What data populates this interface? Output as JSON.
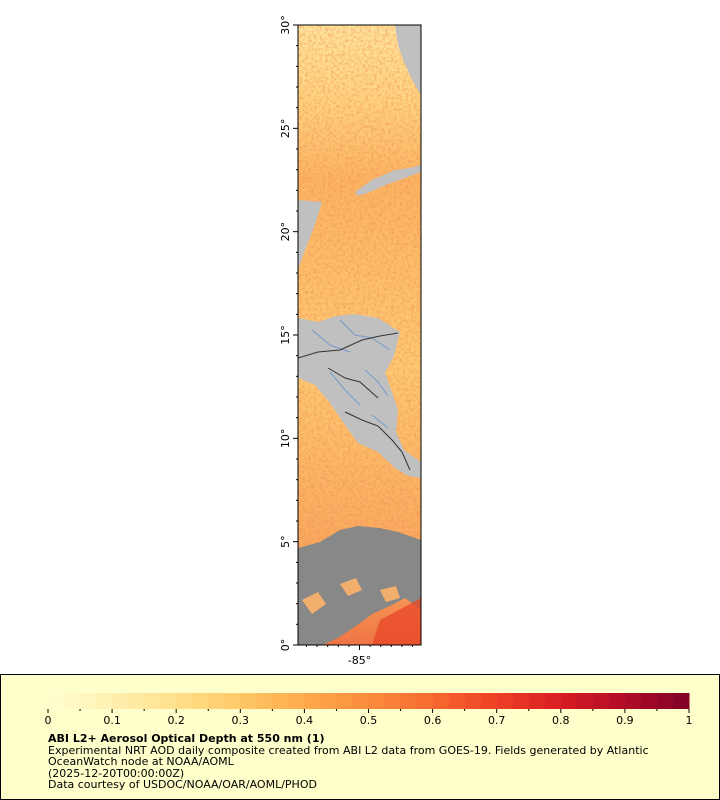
{
  "map": {
    "lat_ticks": [
      {
        "value": 0,
        "label": "0°"
      },
      {
        "value": 5,
        "label": "5°"
      },
      {
        "value": 10,
        "label": "10°"
      },
      {
        "value": 15,
        "label": "15°"
      },
      {
        "value": 20,
        "label": "20°"
      },
      {
        "value": 25,
        "label": "25°"
      },
      {
        "value": 30,
        "label": "30°"
      }
    ],
    "lon_ticks": [
      {
        "value": -85,
        "label": "-85°"
      }
    ],
    "lat_range": [
      0,
      30
    ],
    "lon_range": [
      -87.9,
      -82.1
    ],
    "colors": {
      "land": "#c0c0c0",
      "missing": "#888888",
      "river": "#7799cc",
      "border": "#333333"
    }
  },
  "legend": {
    "title": "ABI L2+ Aerosol Optical Depth at 550 nm (1)",
    "description": "Experimental NRT AOD daily composite created from ABI L2 data from GOES-19. Fields generated by Atlantic OceanWatch node at NOAA/AOML",
    "timestamp": "(2025-12-20T00:00:00Z)",
    "credit": "Data courtesy of USDOC/NOAA/OAR/AOML/PHOD",
    "colorbar": {
      "min": 0,
      "max": 1,
      "tick_labels": [
        "0",
        "0.1",
        "0.2",
        "0.3",
        "0.4",
        "0.5",
        "0.6",
        "0.7",
        "0.8",
        "0.9",
        "1"
      ],
      "colors": [
        "#ffffd2",
        "#fff0b0",
        "#ffe08a",
        "#ffc866",
        "#fdaa4c",
        "#fb8c3c",
        "#f86a30",
        "#ee4026",
        "#d81c22",
        "#b00c26",
        "#800026"
      ]
    }
  }
}
